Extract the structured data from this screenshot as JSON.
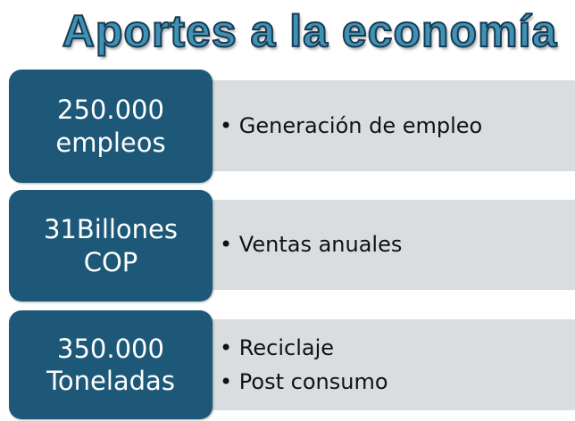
{
  "title": "Aportes a la economía",
  "rows": [
    {
      "label": [
        "250.000",
        "empleos"
      ],
      "bullets": [
        "Generación de empleo"
      ]
    },
    {
      "label": [
        "31Billones",
        "COP"
      ],
      "bullets": [
        "Ventas anuales"
      ]
    },
    {
      "label": [
        "350.000",
        "Toneladas"
      ],
      "bullets": [
        "Reciclaje",
        "Post consumo"
      ]
    }
  ]
}
